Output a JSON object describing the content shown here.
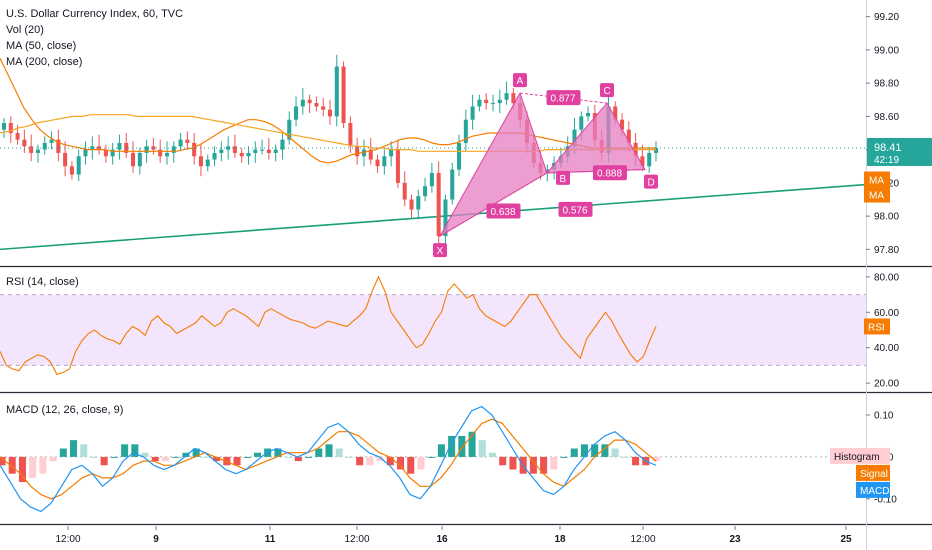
{
  "header": {
    "title": "U.S. Dollar Currency Index, 60, TVC",
    "indicators": [
      "Vol (20)",
      "MA (50, close)",
      "MA (200, close)"
    ]
  },
  "colors": {
    "up": "#26a69a",
    "down": "#ef5350",
    "ma50": "#f57c00",
    "ma200": "#f5a623",
    "trendline": "#1a9e7a",
    "harmonic": "#e040a0",
    "harmonic_fill": "#e57ec0",
    "rsi_line": "#f57c00",
    "rsi_band": "#f3e5fb",
    "macd_line": "#2196f3",
    "signal_line": "#f57c00",
    "hist_up_strong": "#26a69a",
    "hist_up_weak": "#b2dfdb",
    "hist_down_strong": "#ef5350",
    "hist_down_weak": "#ffcdd2"
  },
  "chart_data": [
    {
      "type": "candlestick",
      "pane": "price",
      "title": "U.S. Dollar Currency Index, 60, TVC",
      "ylim": [
        97.7,
        99.3
      ],
      "y_ticks": [
        "99.20",
        "99.00",
        "98.80",
        "98.60",
        "98.40",
        "98.20",
        "98.00",
        "97.80"
      ],
      "x_ticks": [
        "12:00",
        "9",
        "11",
        "12:00",
        "16",
        "18",
        "12:00",
        "23",
        "25"
      ],
      "last_price": "98.41",
      "countdown": "42:19",
      "ma_tags": [
        "MA",
        "MA"
      ],
      "close_series": [
        98.56,
        98.5,
        98.46,
        98.42,
        98.38,
        98.4,
        98.44,
        98.46,
        98.38,
        98.3,
        98.25,
        98.36,
        98.4,
        98.42,
        98.4,
        98.36,
        98.4,
        98.44,
        98.38,
        98.3,
        98.38,
        98.42,
        98.4,
        98.36,
        98.38,
        98.42,
        98.46,
        98.44,
        98.36,
        98.3,
        98.34,
        98.38,
        98.4,
        98.42,
        98.38,
        98.36,
        98.38,
        98.4,
        98.4,
        98.38,
        98.4,
        98.46,
        98.58,
        98.66,
        98.7,
        98.68,
        98.66,
        98.64,
        98.6,
        98.9,
        98.56,
        98.42,
        98.36,
        98.4,
        98.34,
        98.3,
        98.36,
        98.4,
        98.2,
        98.1,
        98.04,
        98.12,
        98.18,
        98.26,
        97.88,
        98.1,
        98.28,
        98.44,
        98.58,
        98.66,
        98.7,
        98.68,
        98.68,
        98.7,
        98.74,
        98.68,
        98.58,
        98.44,
        98.32,
        98.26,
        98.28,
        98.32,
        98.36,
        98.42,
        98.52,
        98.6,
        98.62,
        98.46,
        98.38,
        98.66,
        98.58,
        98.52,
        98.44,
        98.36,
        98.3,
        98.38,
        98.41
      ],
      "ma50": [
        98.95,
        98.85,
        98.75,
        98.65,
        98.58,
        98.52,
        98.48,
        98.45,
        98.43,
        98.42,
        98.41,
        98.4,
        98.4,
        98.4,
        98.39,
        98.39,
        98.39,
        98.39,
        98.39,
        98.39,
        98.39,
        98.39,
        98.39,
        98.4,
        98.41,
        98.43,
        98.46,
        98.49,
        98.52,
        98.54,
        98.56,
        98.58,
        98.58,
        98.57,
        98.55,
        98.52,
        98.48,
        98.44,
        98.4,
        98.36,
        98.33,
        98.32,
        98.33,
        98.35,
        98.37,
        98.38,
        98.39,
        98.4,
        98.42,
        98.44,
        98.46,
        98.47,
        98.47,
        98.46,
        98.44,
        98.43,
        98.43,
        98.44,
        98.46,
        98.48,
        98.49,
        98.5,
        98.5,
        98.5,
        98.5,
        98.5,
        98.49,
        98.48,
        98.47,
        98.46,
        98.45,
        98.44,
        98.43,
        98.42,
        98.41,
        98.41,
        98.41,
        98.41,
        98.41,
        98.41,
        98.41,
        98.41,
        98.41
      ],
      "ma200": [
        98.5,
        98.51,
        98.53,
        98.54,
        98.56,
        98.57,
        98.58,
        98.59,
        98.6,
        98.6,
        98.61,
        98.61,
        98.61,
        98.61,
        98.61,
        98.6,
        98.6,
        98.6,
        98.6,
        98.6,
        98.6,
        98.6,
        98.59,
        98.58,
        98.57,
        98.56,
        98.55,
        98.54,
        98.53,
        98.52,
        98.51,
        98.5,
        98.49,
        98.48,
        98.47,
        98.46,
        98.45,
        98.44,
        98.43,
        98.42,
        98.42,
        98.41,
        98.41,
        98.4,
        98.4,
        98.4,
        98.39,
        98.39,
        98.39,
        98.39,
        98.39,
        98.39,
        98.39,
        98.39,
        98.39,
        98.39,
        98.39,
        98.39,
        98.39,
        98.39,
        98.4,
        98.4,
        98.4,
        98.4,
        98.4,
        98.4,
        98.4,
        98.4,
        98.4,
        98.4,
        98.4,
        98.4,
        98.4
      ],
      "trendline": [
        [
          0,
          97.8
        ],
        [
          1,
          98.19
        ]
      ],
      "harmonic_pattern": {
        "points": [
          {
            "label": "X",
            "value": 97.88
          },
          {
            "label": "A",
            "value": 98.74
          },
          {
            "label": "B",
            "value": 98.26
          },
          {
            "label": "C",
            "value": 98.68
          },
          {
            "label": "D",
            "value": 98.28
          }
        ],
        "ratios": [
          "0.877",
          "0.638",
          "0.576",
          "0.888"
        ]
      }
    },
    {
      "type": "line",
      "pane": "rsi",
      "title": "RSI (14, close)",
      "ylim": [
        15,
        85
      ],
      "y_ticks": [
        "80.00",
        "60.00",
        "40.00",
        "20.00"
      ],
      "band": [
        30,
        70
      ],
      "tag": "RSI",
      "values": [
        38,
        30,
        28,
        27,
        32,
        34,
        36,
        35,
        32,
        25,
        26,
        28,
        38,
        44,
        48,
        50,
        47,
        45,
        44,
        42,
        48,
        52,
        50,
        47,
        55,
        58,
        54,
        52,
        48,
        50,
        52,
        54,
        58,
        55,
        52,
        54,
        60,
        62,
        60,
        58,
        55,
        52,
        60,
        62,
        60,
        58,
        56,
        55,
        54,
        52,
        51,
        53,
        55,
        54,
        53,
        52,
        55,
        58,
        62,
        72,
        80,
        72,
        60,
        55,
        50,
        45,
        40,
        42,
        48,
        55,
        60,
        72,
        76,
        72,
        68,
        70,
        62,
        58,
        56,
        54,
        52,
        55,
        60,
        65,
        70,
        70,
        64,
        58,
        52,
        46,
        42,
        38,
        34,
        45,
        50,
        55,
        60,
        55,
        48,
        42,
        36,
        32,
        35,
        44,
        52
      ]
    },
    {
      "type": "line",
      "pane": "macd",
      "title": "MACD (12, 26, close, 9)",
      "ylim": [
        -0.16,
        0.15
      ],
      "y_ticks": [
        "0.10",
        "0.00",
        "-0.10"
      ],
      "tags": [
        "Histogram",
        "Signal",
        "MACD"
      ],
      "macd": [
        -0.02,
        -0.06,
        -0.1,
        -0.12,
        -0.13,
        -0.11,
        -0.07,
        -0.03,
        -0.02,
        -0.04,
        -0.07,
        -0.05,
        -0.01,
        0.01,
        0.0,
        -0.02,
        -0.03,
        -0.02,
        0.0,
        0.02,
        0.01,
        -0.01,
        -0.03,
        -0.04,
        -0.03,
        -0.01,
        0.01,
        0.02,
        0.01,
        0.0,
        0.01,
        0.04,
        0.07,
        0.08,
        0.06,
        0.03,
        0.01,
        0.0,
        -0.02,
        -0.05,
        -0.09,
        -0.1,
        -0.07,
        -0.02,
        0.03,
        0.07,
        0.11,
        0.12,
        0.1,
        0.06,
        0.02,
        -0.02,
        -0.05,
        -0.08,
        -0.09,
        -0.07,
        -0.03,
        0.0,
        0.03,
        0.05,
        0.06,
        0.04,
        0.01,
        -0.01,
        -0.02
      ],
      "signal": [
        0.0,
        -0.02,
        -0.04,
        -0.07,
        -0.09,
        -0.1,
        -0.09,
        -0.07,
        -0.05,
        -0.04,
        -0.05,
        -0.05,
        -0.04,
        -0.02,
        -0.01,
        -0.01,
        -0.02,
        -0.02,
        -0.01,
        0.0,
        0.01,
        0.0,
        -0.01,
        -0.02,
        -0.03,
        -0.02,
        -0.01,
        0.0,
        0.01,
        0.01,
        0.01,
        0.02,
        0.04,
        0.06,
        0.06,
        0.05,
        0.03,
        0.01,
        0.0,
        -0.02,
        -0.05,
        -0.07,
        -0.07,
        -0.05,
        -0.02,
        0.02,
        0.05,
        0.08,
        0.09,
        0.08,
        0.05,
        0.02,
        -0.01,
        -0.04,
        -0.06,
        -0.07,
        -0.05,
        -0.03,
        0.0,
        0.02,
        0.04,
        0.04,
        0.03,
        0.01,
        -0.01
      ]
    }
  ]
}
